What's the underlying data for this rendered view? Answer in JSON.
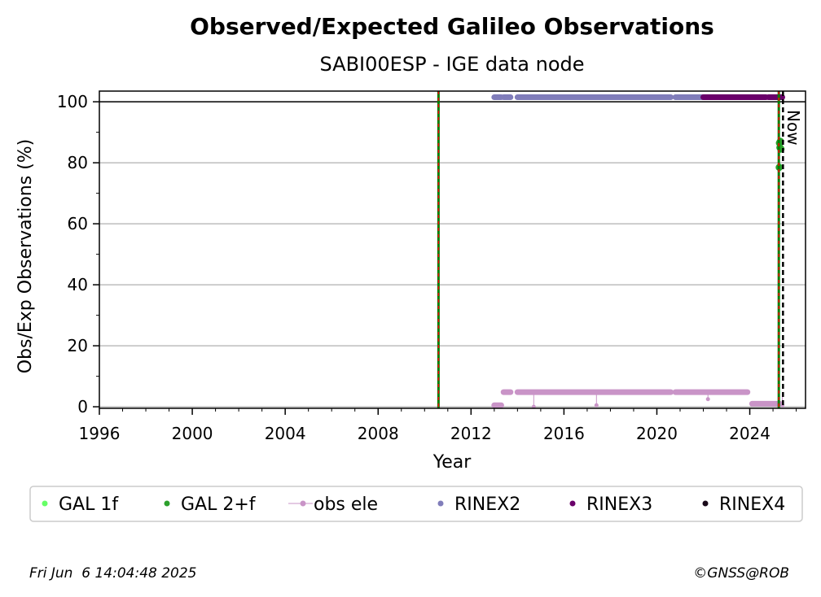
{
  "chart_data": {
    "type": "scatter",
    "title": "Observed/Expected Galileo Observations",
    "subtitle": "SABI00ESP - IGE data node",
    "xlabel": "Year",
    "ylabel": "Obs/Exp Observations (%)",
    "xlim": [
      1996,
      2026.4
    ],
    "ylim": [
      -0.5,
      103.5
    ],
    "x_ticks": [
      "1996",
      "2000",
      "2004",
      "2008",
      "2012",
      "2016",
      "2020",
      "2024"
    ],
    "x_tick_values": [
      1996,
      2000,
      2004,
      2008,
      2012,
      2016,
      2020,
      2024
    ],
    "y_ticks": [
      "0",
      "20",
      "40",
      "60",
      "80",
      "100"
    ],
    "y_tick_values": [
      0,
      20,
      40,
      60,
      80,
      100
    ],
    "grid": "horizontal",
    "reference_line_y": 100,
    "vertical_lines": [
      {
        "x": 2010.6,
        "style": "green-red-dashed"
      },
      {
        "x": 2025.25,
        "style": "green-red-dashed"
      },
      {
        "x": 2025.43,
        "style": "black-dashed",
        "label": "Now"
      }
    ],
    "series": [
      {
        "name": "GAL 1f",
        "color": "#66ff66",
        "points": []
      },
      {
        "name": "GAL 2+f",
        "color": "#2ca02c",
        "points": [
          [
            2025.28,
            86.5
          ],
          [
            2025.3,
            85.0
          ],
          [
            2025.32,
            87.0
          ],
          [
            2025.34,
            84.5
          ],
          [
            2025.27,
            78.5
          ]
        ]
      },
      {
        "name": "obs ele",
        "color": "#c994c7",
        "segments": [
          [
            2013.0,
            2013.3,
            0.5
          ],
          [
            2013.4,
            2013.7,
            4.8
          ],
          [
            2014.0,
            2020.6,
            4.8
          ],
          [
            2020.8,
            2023.9,
            4.8
          ],
          [
            2024.1,
            2025.3,
            1.0
          ]
        ],
        "points": [
          [
            2014.7,
            0.0
          ],
          [
            2017.4,
            0.5
          ],
          [
            2022.2,
            2.5
          ],
          [
            2025.4,
            0.5
          ]
        ]
      },
      {
        "name": "RINEX2",
        "color": "#807dba",
        "segments": [
          [
            2013.0,
            2013.3,
            101.5
          ],
          [
            2013.4,
            2013.7,
            101.5
          ],
          [
            2014.0,
            2020.6,
            101.5
          ],
          [
            2020.8,
            2022.0,
            101.5
          ]
        ]
      },
      {
        "name": "RINEX3",
        "color": "#6a006a",
        "segments": [
          [
            2022.0,
            2024.7,
            101.5
          ],
          [
            2024.8,
            2025.4,
            101.5
          ]
        ]
      },
      {
        "name": "RINEX4",
        "color": "#1a0a1a",
        "points": []
      }
    ],
    "legend": [
      "GAL 1f",
      "GAL 2+f",
      "obs ele",
      "RINEX2",
      "RINEX3",
      "RINEX4"
    ],
    "legend_placement": "bottom"
  },
  "footer": {
    "timestamp": "Fri Jun  6 14:04:48 2025",
    "credit": "©GNSS@ROB"
  },
  "colors": {
    "green_line": "#008000",
    "red_dash": "#ff0000",
    "grid": "#b0b0b0"
  }
}
